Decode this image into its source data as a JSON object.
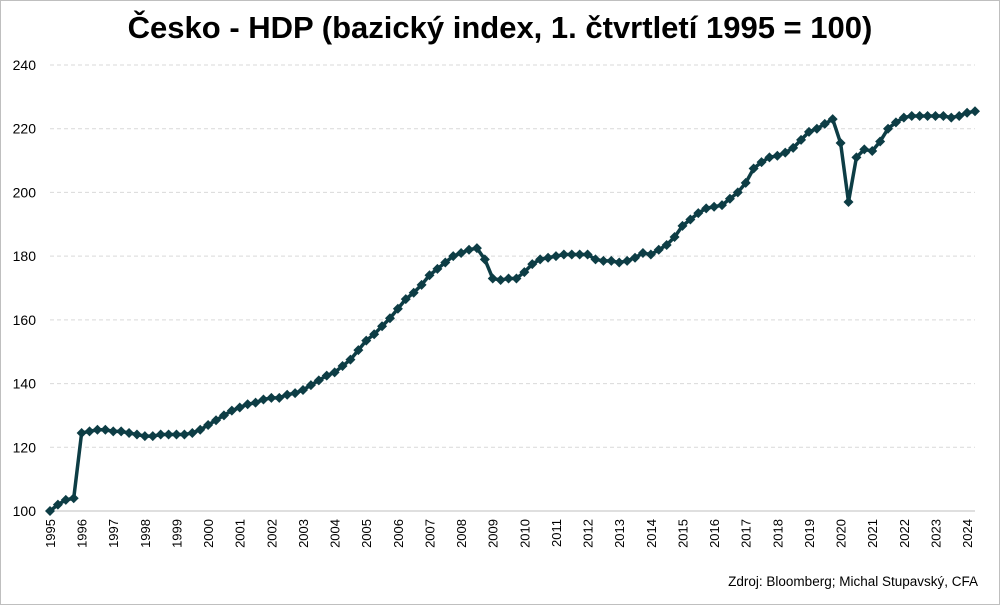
{
  "title": "Česko - HDP (bazický index, 1. čtvrtletí 1995 = 100)",
  "source": "Zdroj: Bloomberg; Michal Stupavský, CFA",
  "colors": {
    "series": "#0d3d45",
    "grid": "#d9d9d9",
    "text": "#000000"
  },
  "chart_data": {
    "type": "line",
    "title": "Česko - HDP (bazický index, 1. čtvrtletí 1995 = 100)",
    "xlabel": "",
    "ylabel": "",
    "ylim": [
      100,
      240
    ],
    "yticks": [
      100,
      120,
      140,
      160,
      180,
      200,
      220,
      240
    ],
    "xticks": [
      "1995",
      "1996",
      "1997",
      "1998",
      "1999",
      "2000",
      "2001",
      "2002",
      "2003",
      "2004",
      "2005",
      "2006",
      "2007",
      "2008",
      "2009",
      "2010",
      "2011",
      "2012",
      "2013",
      "2014",
      "2015",
      "2016",
      "2017",
      "2018",
      "2019",
      "2020",
      "2021",
      "2022",
      "2023",
      "2024"
    ],
    "grid": "horizontal dashed",
    "legend": "none",
    "marker": "diamond",
    "series": [
      {
        "start": "1995 Q1",
        "frequency": "quarterly",
        "values": [
          100,
          102,
          103.5,
          104,
          124.5,
          125,
          125.5,
          125.5,
          125,
          125,
          124.5,
          124,
          123.5,
          123.5,
          124,
          124,
          124,
          124,
          124.5,
          125.5,
          127,
          128.5,
          130,
          131.5,
          132.5,
          133.5,
          134,
          135,
          135.5,
          135.5,
          136.5,
          137,
          138,
          139.5,
          141,
          142.5,
          143.5,
          145.5,
          147.5,
          150.5,
          153.5,
          155.5,
          158,
          160.5,
          163.5,
          166.5,
          168.5,
          171,
          174,
          176,
          178,
          180,
          181,
          182,
          182.5,
          179,
          173,
          172.5,
          173,
          173,
          175,
          177.5,
          179,
          179.5,
          180,
          180.5,
          180.5,
          180.5,
          180.5,
          179,
          178.5,
          178.5,
          178,
          178.5,
          179.5,
          181,
          180.5,
          182,
          183.5,
          186,
          189.5,
          191.5,
          193.5,
          195,
          195.5,
          196,
          198,
          200,
          203,
          207.5,
          209.5,
          211,
          211.5,
          212.5,
          214,
          216.5,
          219,
          220,
          221.5,
          223,
          215.5,
          197,
          211,
          213.5,
          213,
          216,
          220,
          222,
          223.5,
          224,
          224,
          224,
          224,
          224,
          223.5,
          224,
          225,
          225.5
        ]
      }
    ]
  }
}
